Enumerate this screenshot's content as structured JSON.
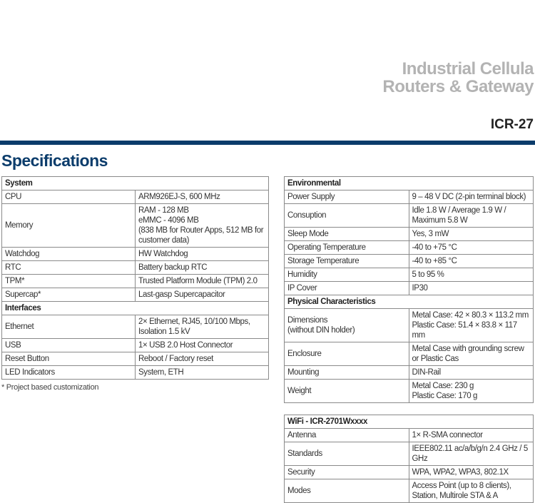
{
  "header": {
    "title_line1": "Industrial Cellula",
    "title_line2": "Routers & Gateway",
    "model": "ICR-27",
    "section_title": "Specifications",
    "accent_color": "#0b3c6b"
  },
  "left": {
    "system": {
      "title": "System",
      "rows": [
        {
          "k": "CPU",
          "v": [
            "ARM926EJ-S, 600 MHz"
          ]
        },
        {
          "k": "Memory",
          "v": [
            "RAM - 128 MB",
            "eMMC - 4096 MB",
            "(838 MB for Router Apps, 512 MB for customer data)"
          ]
        },
        {
          "k": "Watchdog",
          "v": [
            "HW Watchdog"
          ]
        },
        {
          "k": "RTC",
          "v": [
            "Battery backup RTC"
          ]
        },
        {
          "k": "TPM*",
          "v": [
            "Trusted Platform Module (TPM) 2.0"
          ]
        },
        {
          "k": "Supercap*",
          "v": [
            "Last-gasp Supercapacitor"
          ]
        }
      ]
    },
    "interfaces": {
      "title": "Interfaces",
      "rows": [
        {
          "k": "Ethernet",
          "v": [
            "2× Ethernet, RJ45, 10/100 Mbps, Isolation 1.5 kV"
          ]
        },
        {
          "k": "USB",
          "v": [
            "1× USB 2.0 Host Connector"
          ]
        },
        {
          "k": "Reset Button",
          "v": [
            "Reboot / Factory reset"
          ]
        },
        {
          "k": "LED Indicators",
          "v": [
            "System, ETH"
          ]
        }
      ]
    },
    "footnote": "* Project based customization"
  },
  "right": {
    "environmental": {
      "title": "Environmental",
      "rows": [
        {
          "k": [
            "Power Supply"
          ],
          "v": [
            "9 – 48 V DC (2-pin terminal block)"
          ]
        },
        {
          "k": [
            "Consuption"
          ],
          "v": [
            "Idle 1.8 W / Average 1.9 W / Maximum 5.8 W"
          ]
        },
        {
          "k": [
            "Sleep Mode"
          ],
          "v": [
            "Yes, 3 mW"
          ]
        },
        {
          "k": [
            "Operating Temperature"
          ],
          "v": [
            "-40 to +75 °C"
          ]
        },
        {
          "k": [
            "Storage Temperature"
          ],
          "v": [
            "-40 to +85 °C"
          ]
        },
        {
          "k": [
            "Humidity"
          ],
          "v": [
            "5 to 95 %"
          ]
        },
        {
          "k": [
            "IP Cover"
          ],
          "v": [
            "IP30"
          ]
        }
      ]
    },
    "physical": {
      "title": "Physical Characteristics",
      "rows": [
        {
          "k": [
            "Dimensions",
            "(without DIN holder)"
          ],
          "v": [
            "Metal Case: 42 × 80.3 × 113.2 mm",
            "Plastic Case: 51.4 × 83.8 × 117 mm"
          ]
        },
        {
          "k": [
            "Enclosure"
          ],
          "v": [
            "Metal Case with grounding screw or Plastic Cas"
          ]
        },
        {
          "k": [
            "Mounting"
          ],
          "v": [
            "DIN-Rail"
          ]
        },
        {
          "k": [
            "Weight"
          ],
          "v": [
            "Metal Case: 230 g",
            "Plastic Case: 170 g"
          ]
        }
      ]
    },
    "wifi": {
      "title": "WiFi - ICR-2701Wxxxx",
      "rows": [
        {
          "k": [
            "Antenna"
          ],
          "v": [
            "1× R-SMA connector"
          ]
        },
        {
          "k": [
            "Standards"
          ],
          "v": [
            "IEEE802.11 ac/a/b/g/n 2.4 GHz / 5 GHz"
          ]
        },
        {
          "k": [
            "Security"
          ],
          "v": [
            "WPA, WPA2, WPA3, 802.1X"
          ]
        },
        {
          "k": [
            "Modes"
          ],
          "v": [
            "Access Point (up to 8 clients), Station, Multirole STA & A"
          ]
        }
      ]
    }
  }
}
